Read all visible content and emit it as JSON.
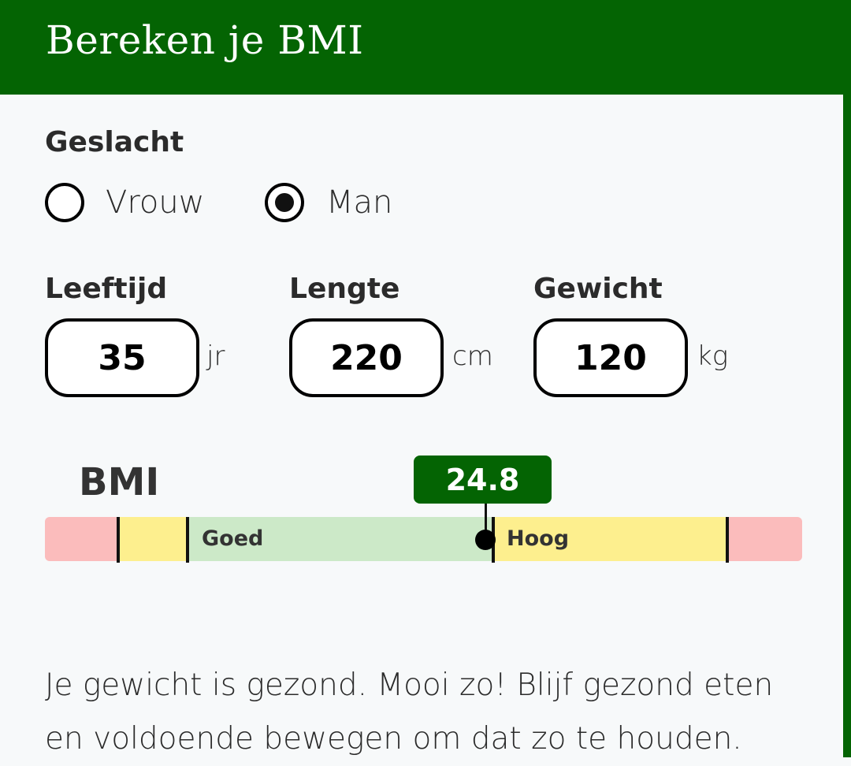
{
  "header": {
    "title": "Bereken je BMI"
  },
  "gender": {
    "label": "Geslacht",
    "options": [
      {
        "label": "Vrouw",
        "selected": false
      },
      {
        "label": "Man",
        "selected": true
      }
    ]
  },
  "fields": {
    "age": {
      "label": "Leeftijd",
      "value": "35",
      "unit": "jr"
    },
    "height": {
      "label": "Lengte",
      "value": "220",
      "unit": "cm"
    },
    "weight": {
      "label": "Gewicht",
      "value": "120",
      "unit": "kg"
    }
  },
  "bmi": {
    "label": "BMI",
    "value": "24.8",
    "segments": [
      {
        "label": "",
        "color": "#fbbcbc"
      },
      {
        "label": "",
        "color": "#fdef8e"
      },
      {
        "label": "Goed",
        "color": "#cce9c8"
      },
      {
        "label": "Hoog",
        "color": "#fdef8e"
      },
      {
        "label": "",
        "color": "#fbbcbc"
      }
    ]
  },
  "message": "Je gewicht is gezond. Mooi zo! Blijf gezond eten en voldoende bewegen om dat zo te houden.",
  "colors": {
    "brand": "#046403"
  }
}
